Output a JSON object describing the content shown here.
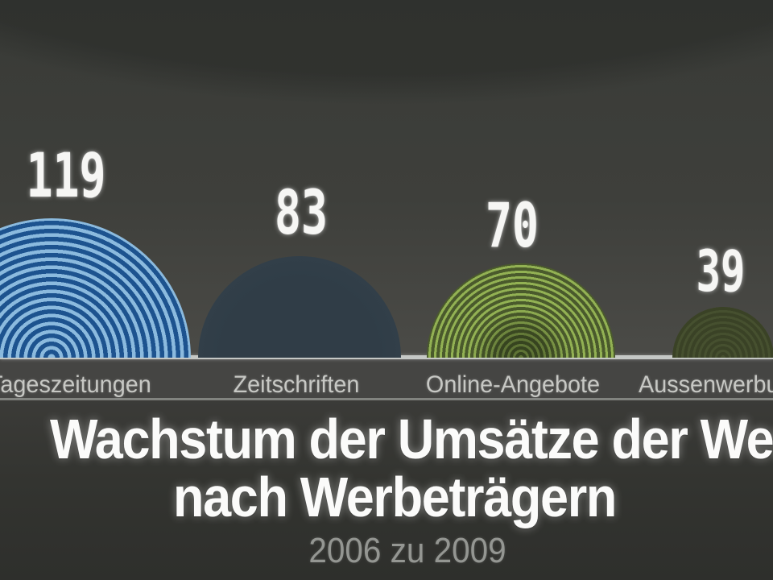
{
  "chart_data": {
    "type": "bar",
    "mark": "proportional-concentric-semicircles",
    "categories": [
      "Tageszeitungen",
      "Zeitschriften",
      "Online-Angebote",
      "Aussenwerbu"
    ],
    "values": [
      119,
      83,
      70,
      39
    ],
    "title": "Wachstum der Umsätze der Werbu",
    "title_line2": "nach Werbeträgern",
    "subtitle": "2006 zu 2009",
    "xlabel": "",
    "ylabel": "",
    "legend": "none",
    "grid": false,
    "notes": "right side of frame crops fourth category label and first title line"
  },
  "colors": {
    "background": "#3f403c",
    "baseline": "#c5c8c5",
    "ring_blue_light": "#8bbade",
    "ring_blue_dark": "#1d538f",
    "circle_slate": "#33414b",
    "ring_green_light": "#92b153",
    "ring_green_dark": "#4a5a2c",
    "ring_olive_light": "#46502f",
    "ring_olive_dark": "#3a4226",
    "value_text": "#f6f6f4",
    "label_text": "#c7c8c4",
    "subtitle_text": "#949692"
  }
}
